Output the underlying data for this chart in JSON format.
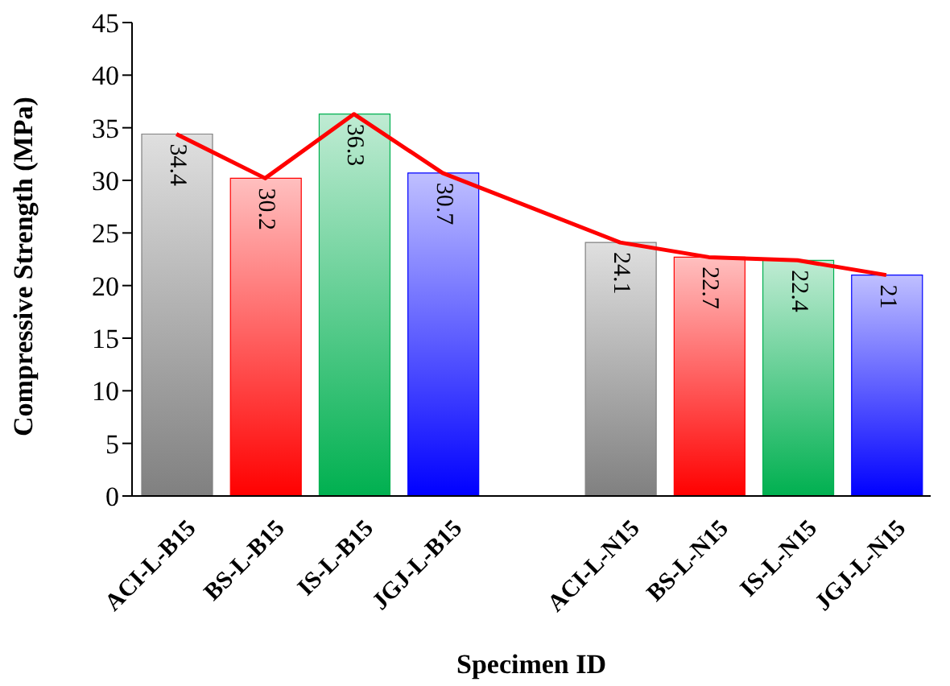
{
  "chart_data": {
    "type": "bar",
    "xlabel": "Specimen ID",
    "ylabel": "Compressive Strength (MPa)",
    "categories": [
      "ACI-L-B15",
      "BS-L-B15",
      "IS-L-B15",
      "JGJ-L-B15",
      null,
      "ACI-L-N15",
      "BS-L-N15",
      "IS-L-N15",
      "JGJ-L-N15"
    ],
    "series": [
      {
        "values": [
          34.4,
          30.2,
          36.3,
          30.7,
          null,
          24.1,
          22.7,
          22.4,
          21
        ],
        "colors": [
          "#808080",
          "#ff0000",
          "#00b050",
          "#0000ff",
          "#ffffff",
          "#808080",
          "#ff0000",
          "#00b050",
          "#0000ff"
        ]
      },
      {
        "type": "line",
        "color": "#ff0000",
        "values": [
          34.4,
          30.2,
          36.3,
          30.7,
          null,
          24.1,
          22.7,
          22.4,
          21
        ],
        "value_labels": [
          null,
          null,
          null,
          null,
          null,
          null,
          null,
          null,
          null
        ]
      }
    ],
    "ylim": [
      0,
      45
    ],
    "yticks": [
      0,
      5,
      10,
      15,
      20,
      25,
      30,
      35,
      40,
      45
    ],
    "data_labels": true,
    "grid": false,
    "legend": false,
    "marker": "none"
  }
}
